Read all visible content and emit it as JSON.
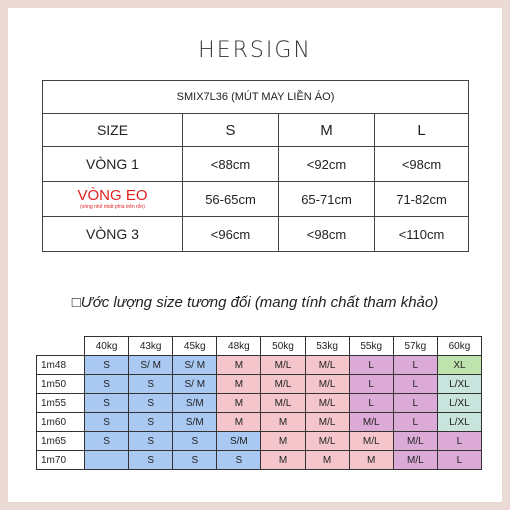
{
  "brand": "HERSIGN",
  "measure_table": {
    "product_code": "SMIX7L36 (MÚT MAY LIỀN ÁO)",
    "size_label": "SIZE",
    "sizes": [
      "S",
      "M",
      "L"
    ],
    "rows": [
      {
        "label": "VÒNG 1",
        "note": "",
        "values": [
          "<88cm",
          "<92cm",
          "<98cm"
        ]
      },
      {
        "label": "VÒNG EO",
        "note": "(vòng nhỏ nhất phía trên rốn)",
        "values": [
          "56-65cm",
          "65-71cm",
          "71-82cm"
        ]
      },
      {
        "label": "VÒNG 3",
        "note": "",
        "values": [
          "<96cm",
          "<98cm",
          "<110cm"
        ]
      }
    ]
  },
  "subtitle": "Ước lượng size tương đối (mang tính chất tham khảo)",
  "weight_grid": {
    "weights": [
      "40kg",
      "43kg",
      "45kg",
      "48kg",
      "50kg",
      "53kg",
      "55kg",
      "57kg",
      "60kg"
    ],
    "rows": [
      {
        "height": "1m48",
        "cells": [
          "S",
          "S/ M",
          "S/ M",
          "M",
          "M/L",
          "M/L",
          "L",
          "L",
          "XL"
        ],
        "colors": [
          "b",
          "b",
          "b",
          "p",
          "p",
          "p",
          "v",
          "v",
          "g"
        ]
      },
      {
        "height": "1m50",
        "cells": [
          "S",
          "S",
          "S/ M",
          "M",
          "M/L",
          "M/L",
          "L",
          "L",
          "L/XL"
        ],
        "colors": [
          "b",
          "b",
          "b",
          "p",
          "p",
          "p",
          "v",
          "v",
          "t"
        ]
      },
      {
        "height": "1m55",
        "cells": [
          "S",
          "S",
          "S/M",
          "M",
          "M/L",
          "M/L",
          "L",
          "L",
          "L/XL"
        ],
        "colors": [
          "b",
          "b",
          "b",
          "p",
          "p",
          "p",
          "v",
          "v",
          "t"
        ]
      },
      {
        "height": "1m60",
        "cells": [
          "S",
          "S",
          "S/M",
          "M",
          "M",
          "M/L",
          "M/L",
          "L",
          "L/XL"
        ],
        "colors": [
          "b",
          "b",
          "b",
          "p",
          "p",
          "p",
          "v",
          "v",
          "t"
        ]
      },
      {
        "height": "1m65",
        "cells": [
          "S",
          "S",
          "S",
          "S/M",
          "M",
          "M/L",
          "M/L",
          "M/L",
          "L"
        ],
        "colors": [
          "b",
          "b",
          "b",
          "b",
          "p",
          "p",
          "p",
          "v",
          "v"
        ]
      },
      {
        "height": "1m70",
        "cells": [
          "",
          "S",
          "S",
          "S",
          "M",
          "M",
          "M",
          "M/L",
          "L"
        ],
        "colors": [
          "b",
          "b",
          "b",
          "b",
          "p",
          "p",
          "p",
          "v",
          "v"
        ]
      }
    ]
  }
}
